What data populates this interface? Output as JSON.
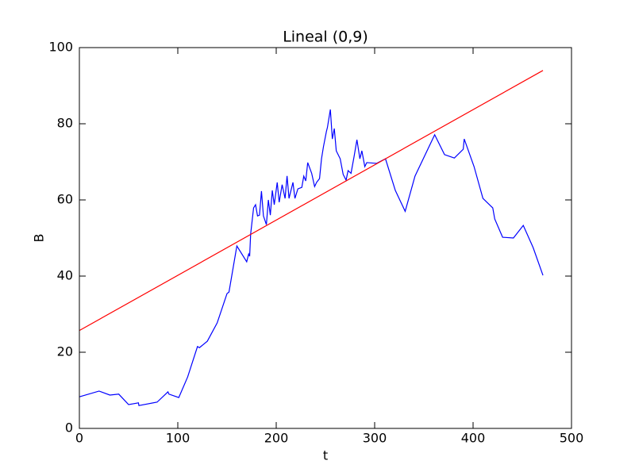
{
  "chart_data": {
    "type": "line",
    "title": "Lineal (0,9)",
    "x_label": "t",
    "y_label": "B",
    "xlim": [
      0,
      500
    ],
    "ylim": [
      0,
      100
    ],
    "xticks": [
      0,
      100,
      200,
      300,
      400,
      500
    ],
    "yticks": [
      0,
      20,
      40,
      60,
      80,
      100
    ],
    "grid": false,
    "series": [
      {
        "color": "#0000ff",
        "x": [
          0,
          20,
          31,
          40,
          50,
          60,
          60.5,
          79,
          90,
          91,
          101,
          110,
          120,
          122,
          130,
          140,
          150,
          152,
          160,
          170,
          172,
          173,
          174,
          177,
          179,
          181,
          183,
          185,
          187,
          190,
          192,
          194,
          196,
          198,
          201,
          203,
          206,
          209,
          211,
          213,
          217,
          219,
          222,
          226,
          228,
          230,
          232,
          235,
          236,
          239,
          241,
          244,
          246,
          248,
          251,
          252,
          255,
          257,
          259,
          261,
          265,
          268,
          271,
          273,
          276,
          279,
          282,
          285,
          287,
          290,
          292,
          302,
          311,
          321,
          331,
          341,
          361,
          371,
          381,
          390,
          391,
          401,
          410,
          420,
          422,
          430,
          441,
          451,
          461,
          471
        ],
        "values": [
          8.3,
          9.8,
          8.75,
          9,
          6.25,
          6.7,
          6,
          6.9,
          9.6,
          9,
          8.1,
          13.5,
          21.5,
          21.2,
          22.9,
          27.7,
          35.4,
          35.8,
          47.9,
          43.75,
          45.8,
          45.2,
          51,
          57.9,
          58.75,
          55.8,
          56,
          62.3,
          55.8,
          53.5,
          60,
          56,
          62.5,
          58.75,
          64.6,
          59.4,
          64,
          60.4,
          66.3,
          60.4,
          64.6,
          60.4,
          62.9,
          63.3,
          66.25,
          65,
          69.8,
          67.7,
          67,
          63.5,
          64.6,
          65.6,
          70.8,
          74,
          78,
          79,
          83.75,
          76,
          78.75,
          72.9,
          70.8,
          66.7,
          65.2,
          67.7,
          67,
          71.25,
          75.8,
          70.8,
          72.9,
          68.75,
          69.8,
          69.6,
          70.8,
          62.5,
          57,
          66.25,
          77.1,
          71.9,
          71,
          73.3,
          76,
          68.75,
          60.4,
          57.9,
          55,
          50.2,
          50,
          53.3,
          47.5,
          40.2
        ]
      },
      {
        "color": "#ff0000",
        "x": [
          0,
          471
        ],
        "values": [
          25.7,
          94
        ]
      }
    ]
  }
}
